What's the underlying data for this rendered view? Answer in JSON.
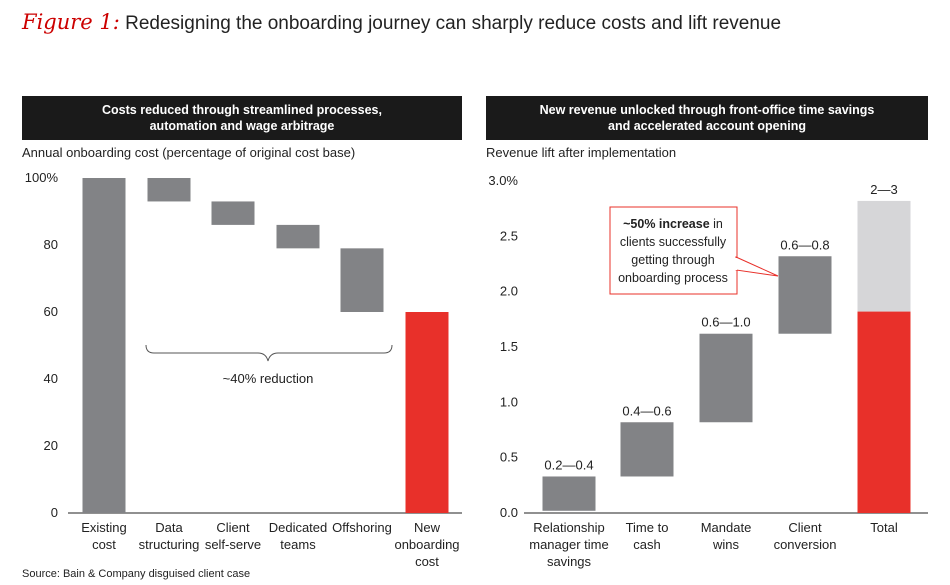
{
  "figure": {
    "label": "Figure 1:",
    "title": "Redesigning the onboarding journey can sharply reduce costs and lift revenue"
  },
  "source": "Source: Bain & Company disguised client case",
  "colors": {
    "gray": "#828386",
    "red": "#e8302a",
    "light_gray": "#d6d6d8",
    "header_bg": "#1a1a1a",
    "callout_border": "#e8302a"
  },
  "chart_data": [
    {
      "type": "bar",
      "subtype": "waterfall",
      "panel_title_line1": "Costs reduced through streamlined processes,",
      "panel_title_line2": "automation and wage arbitrage",
      "ylabel": "Annual onboarding cost (percentage of original cost base)",
      "ylim": [
        0,
        100
      ],
      "yticks": [
        0,
        20,
        40,
        60,
        80,
        100
      ],
      "ytick_labels": [
        "0",
        "20",
        "40",
        "60",
        "80",
        "100%"
      ],
      "grid": false,
      "categories": [
        [
          "Existing",
          "cost"
        ],
        [
          "Data",
          "structuring"
        ],
        [
          "Client",
          "self-serve"
        ],
        [
          "Dedicated",
          "teams"
        ],
        [
          "Offshoring"
        ],
        [
          "New",
          "onboarding",
          "cost"
        ]
      ],
      "bars": [
        {
          "low": 0,
          "high": 100,
          "color": "gray"
        },
        {
          "low": 93,
          "high": 100,
          "color": "gray"
        },
        {
          "low": 86,
          "high": 93,
          "color": "gray"
        },
        {
          "low": 79,
          "high": 86,
          "color": "gray"
        },
        {
          "low": 60,
          "high": 79,
          "color": "gray"
        },
        {
          "low": 0,
          "high": 60,
          "color": "red"
        }
      ],
      "annotation": "~40% reduction"
    },
    {
      "type": "bar",
      "subtype": "waterfall",
      "panel_title_line1": "New revenue unlocked through front-office time savings",
      "panel_title_line2": "and accelerated account opening",
      "ylabel": "Revenue lift after implementation",
      "ylim": [
        0,
        3.0
      ],
      "yticks": [
        0,
        0.5,
        1.0,
        1.5,
        2.0,
        2.5,
        3.0
      ],
      "ytick_labels": [
        "0.0",
        "0.5",
        "1.0",
        "1.5",
        "2.0",
        "2.5",
        "3.0%"
      ],
      "grid": false,
      "categories": [
        [
          "Relationship",
          "manager time",
          "savings"
        ],
        [
          "Time to",
          "cash"
        ],
        [
          "Mandate",
          "wins"
        ],
        [
          "Client",
          "conversion"
        ],
        [
          "Total"
        ]
      ],
      "bars": [
        {
          "low": 0.02,
          "high": 0.33,
          "color": "gray",
          "label": "0.2—0.4"
        },
        {
          "low": 0.33,
          "high": 0.82,
          "color": "gray",
          "label": "0.4—0.6"
        },
        {
          "low": 0.82,
          "high": 1.62,
          "color": "gray",
          "label": "0.6—1.0"
        },
        {
          "low": 1.62,
          "high": 2.32,
          "color": "gray",
          "label": "0.6—0.8"
        },
        {
          "low": 0,
          "high": 2.82,
          "color": "total",
          "label": "2—3",
          "stack_split": 1.82
        }
      ],
      "callout": {
        "bold": "~50% increase",
        "rest": " in",
        "line2": "clients successfully",
        "line3": "getting through",
        "line4": "onboarding process"
      }
    }
  ]
}
